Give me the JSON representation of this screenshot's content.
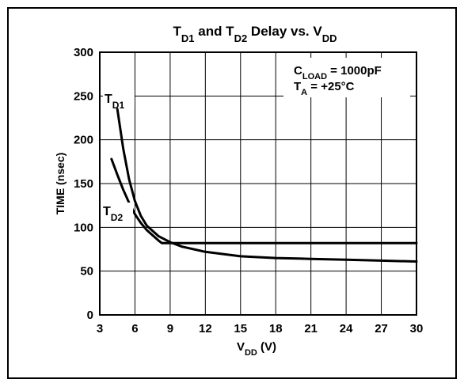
{
  "chart_data": {
    "type": "line",
    "title": {
      "main": "T",
      "sub1": "D1",
      "mid": " and T",
      "sub2": "D2",
      "tail": " Delay vs. V",
      "sub3": "DD"
    },
    "xlabel": {
      "main": "V",
      "sub": "DD",
      "tail": " (V)"
    },
    "ylabel": "TIME (nsec)",
    "xlim": [
      3,
      30
    ],
    "ylim": [
      0,
      300
    ],
    "xticks": [
      "3",
      "6",
      "9",
      "12",
      "15",
      "18",
      "21",
      "24",
      "27",
      "30"
    ],
    "yticks": [
      "0",
      "50",
      "100",
      "150",
      "200",
      "250",
      "300"
    ],
    "grid": true,
    "annotation": {
      "line1": {
        "main": "C",
        "sub": "LOAD",
        "tail": " = 1000pF"
      },
      "line2": {
        "main": "T",
        "sub": "A",
        "tail": " = +25°C"
      }
    },
    "series": [
      {
        "name": {
          "main": "T",
          "sub": "D1"
        },
        "x": [
          4.5,
          5.0,
          5.5,
          6.0,
          6.5,
          7.0,
          8.0,
          9.0,
          10.0,
          12.0,
          15.0,
          18.0,
          21.0,
          24.0,
          27.0,
          30.0
        ],
        "y": [
          235,
          190,
          155,
          130,
          113,
          102,
          90,
          83,
          78,
          72,
          67,
          65,
          64,
          63,
          62,
          61
        ]
      },
      {
        "name": {
          "main": "T",
          "sub": "D2"
        },
        "x": [
          4.0,
          4.5,
          5.0,
          5.5,
          6.0,
          6.5,
          7.0,
          8.0,
          8.3,
          9.0,
          12.0,
          15.0,
          18.0,
          21.0,
          24.0,
          27.0,
          30.0
        ],
        "y": [
          178,
          160,
          143,
          128,
          115,
          105,
          97,
          85,
          82,
          82,
          82,
          82,
          82,
          82,
          82,
          82,
          82
        ]
      }
    ]
  }
}
